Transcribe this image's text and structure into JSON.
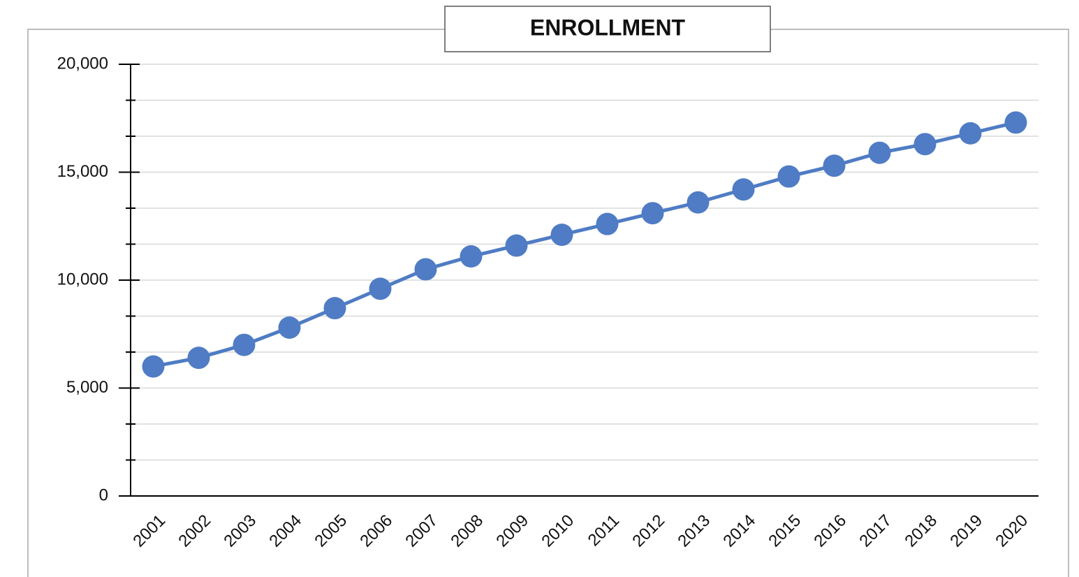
{
  "chart_data": {
    "type": "line",
    "title": "ENROLLMENT",
    "categories": [
      "2001",
      "2002",
      "2003",
      "2004",
      "2005",
      "2006",
      "2007",
      "2008",
      "2009",
      "2010",
      "2011",
      "2012",
      "2013",
      "2014",
      "2015",
      "2016",
      "2017",
      "2018",
      "2019",
      "2020"
    ],
    "series": [
      {
        "name": "Enrollment",
        "color": "#4f7cc4",
        "values": [
          6000,
          6400,
          7000,
          7800,
          8700,
          9600,
          10500,
          11100,
          11600,
          12100,
          12600,
          13100,
          13600,
          14200,
          14800,
          15300,
          15900,
          16300,
          16800,
          17300
        ]
      }
    ],
    "ylim": [
      0,
      20000
    ],
    "yticks": [
      0,
      {
        "value": 5000,
        "label": "5,000"
      },
      {
        "value": 10000,
        "label": "10,000"
      },
      {
        "value": 15000,
        "label": "15,000"
      },
      {
        "value": 20000,
        "label": "20,000"
      }
    ],
    "grid": true
  }
}
